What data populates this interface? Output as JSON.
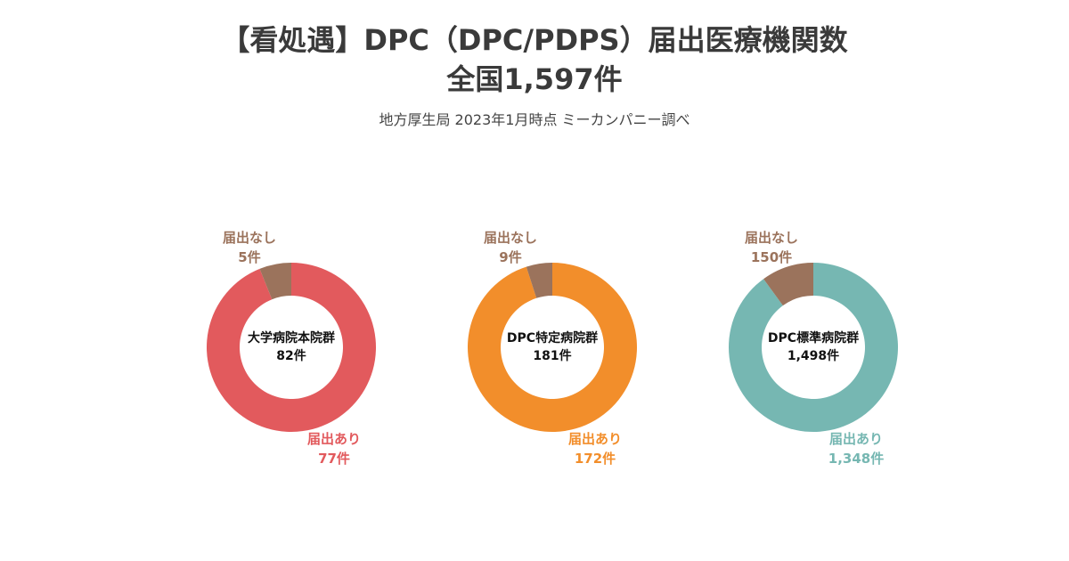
{
  "header": {
    "title_line1": "【看処遇】DPC（DPC/PDPS）届出医療機関数",
    "title_line2": "全国1,597件",
    "subtitle": "地方厚生局 2023年1月時点 ミーカンパニー調べ"
  },
  "colors": {
    "no_filing": "#9b735c"
  },
  "chart_data": [
    {
      "type": "pie",
      "title": "大学病院本院群",
      "total": "82件",
      "accent": "#e25a5d",
      "slices": [
        {
          "name": "届出あり",
          "value": 77,
          "value_label": "77件"
        },
        {
          "name": "届出なし",
          "value": 5,
          "value_label": "5件"
        }
      ]
    },
    {
      "type": "pie",
      "title": "DPC特定病院群",
      "total": "181件",
      "accent": "#f28e2b",
      "slices": [
        {
          "name": "届出あり",
          "value": 172,
          "value_label": "172件"
        },
        {
          "name": "届出なし",
          "value": 9,
          "value_label": "9件"
        }
      ]
    },
    {
      "type": "pie",
      "title": "DPC標準病院群",
      "total": "1,498件",
      "accent": "#76b7b2",
      "slices": [
        {
          "name": "届出あり",
          "value": 1348,
          "value_label": "1,348件"
        },
        {
          "name": "届出なし",
          "value": 150,
          "value_label": "150件"
        }
      ]
    }
  ]
}
